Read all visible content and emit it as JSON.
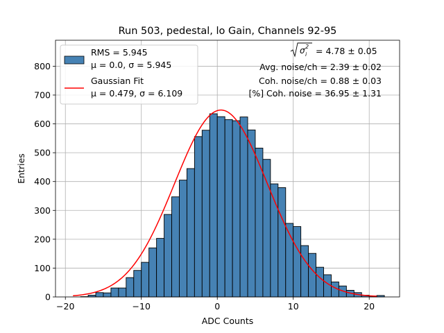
{
  "colors": {
    "bar_fill": "#4682b4",
    "bar_edge": "#000000",
    "fit_line": "#ff0000",
    "grid": "#b0b0b0",
    "axes": "#000000",
    "legend_edge": "#cccccc"
  },
  "chart_data": {
    "type": "bar",
    "title": "Run 503, pedestal, lo Gain, Channels 92-95",
    "xlabel": "ADC Counts",
    "ylabel": "Entries",
    "xlim": [
      -21.3,
      24.0
    ],
    "ylim": [
      0,
      890
    ],
    "grid": true,
    "xticks": [
      -20,
      -10,
      0,
      10,
      20
    ],
    "yticks": [
      0,
      100,
      200,
      300,
      400,
      500,
      600,
      700,
      800
    ],
    "xtick_labels": [
      "−20",
      "−10",
      "0",
      "10",
      "20"
    ],
    "ytick_labels": [
      "0",
      "100",
      "200",
      "300",
      "400",
      "500",
      "600",
      "700",
      "800"
    ],
    "bin_width": 1,
    "bin_edges_start": -18,
    "values": [
      1,
      6,
      15,
      14,
      31,
      31,
      67,
      92,
      120,
      170,
      203,
      286,
      347,
      405,
      445,
      556,
      578,
      635,
      625,
      615,
      611,
      624,
      579,
      516,
      477,
      392,
      379,
      255,
      244,
      178,
      151,
      103,
      77,
      52,
      38,
      23,
      15,
      6,
      3,
      5
    ],
    "fit": {
      "label": "Gaussian Fit",
      "mu": 0.479,
      "sigma": 6.109,
      "amplitude": 648,
      "x_range": [
        -19,
        21
      ]
    },
    "legend": {
      "position": "top-left",
      "entries": [
        {
          "marker": "bar",
          "line1": "RMS = 5.945",
          "line2": "μ = 0.0, σ = 5.945"
        },
        {
          "marker": "line",
          "line1": "Gaussian Fit",
          "line2": "μ = 0.479, σ = 6.109"
        }
      ]
    },
    "annotations": {
      "sigma_value": "= 4.78 ± 0.05",
      "lines": [
        "Avg. noise/ch = 2.39 ± 0.02",
        "Coh. noise/ch = 0.88 ± 0.03",
        "[%] Coh. noise = 36.95 ± 1.31"
      ]
    }
  }
}
